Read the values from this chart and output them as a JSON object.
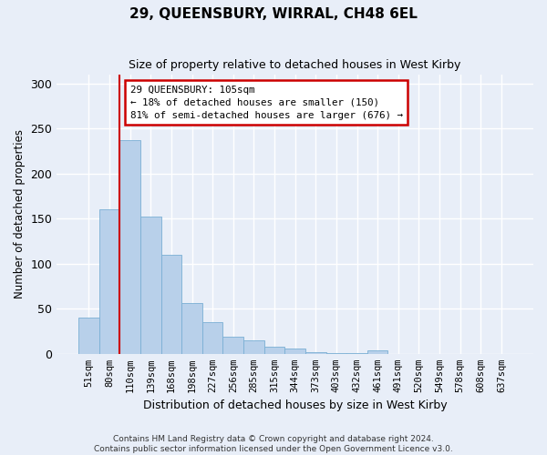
{
  "title": "29, QUEENSBURY, WIRRAL, CH48 6EL",
  "subtitle": "Size of property relative to detached houses in West Kirby",
  "xlabel": "Distribution of detached houses by size in West Kirby",
  "ylabel": "Number of detached properties",
  "bar_values": [
    40,
    160,
    237,
    152,
    110,
    56,
    35,
    19,
    15,
    8,
    6,
    2,
    1,
    1,
    4
  ],
  "bin_labels": [
    "51sqm",
    "80sqm",
    "110sqm",
    "139sqm",
    "168sqm",
    "198sqm",
    "227sqm",
    "256sqm",
    "285sqm",
    "315sqm",
    "344sqm",
    "373sqm",
    "403sqm",
    "432sqm",
    "461sqm",
    "491sqm",
    "520sqm",
    "549sqm",
    "578sqm",
    "608sqm",
    "637sqm"
  ],
  "bar_color": "#b8d0ea",
  "bar_edge_color": "#7aafd4",
  "vline_color": "#cc0000",
  "annotation_text": "29 QUEENSBURY: 105sqm\n← 18% of detached houses are smaller (150)\n81% of semi-detached houses are larger (676) →",
  "annotation_box_color": "#ffffff",
  "annotation_box_edge_color": "#cc0000",
  "ylim": [
    0,
    310
  ],
  "yticks": [
    0,
    50,
    100,
    150,
    200,
    250,
    300
  ],
  "footer_text": "Contains HM Land Registry data © Crown copyright and database right 2024.\nContains public sector information licensed under the Open Government Licence v3.0.",
  "background_color": "#e8eef8",
  "plot_background_color": "#e8eef8",
  "grid_color": "#ffffff",
  "all_bar_values": [
    40,
    160,
    237,
    152,
    110,
    56,
    35,
    19,
    15,
    8,
    6,
    2,
    1,
    1,
    4,
    0,
    0,
    0,
    0,
    0,
    0
  ]
}
